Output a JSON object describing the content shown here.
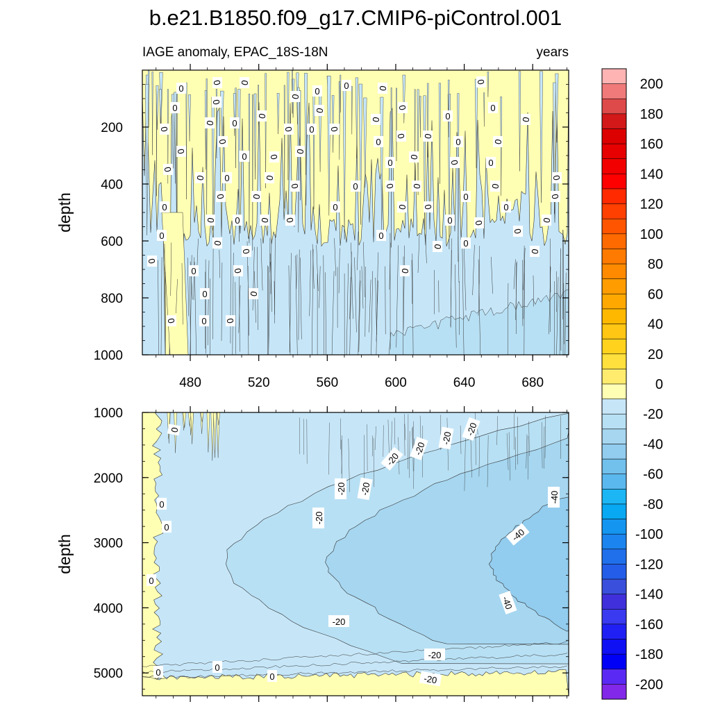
{
  "chart_data": {
    "type": "heatmap",
    "title": "b.e21.B1850.f09_g17.CMIP6-piControl.001",
    "variable_label": "IAGE anomaly, EPAC_18S-18N",
    "units_label": "years",
    "ylabel": "depth",
    "xlim": [
      452,
      701
    ],
    "x_ticks": [
      480,
      520,
      560,
      600,
      640,
      680
    ],
    "x_tick_labels": [
      "480",
      "520",
      "560",
      "600",
      "640",
      "680"
    ],
    "panels": [
      {
        "name": "upper",
        "ylim": [
          0,
          1000
        ],
        "y_ticks": [
          200,
          400,
          600,
          800,
          1000
        ],
        "y_tick_labels": [
          "200",
          "400",
          "600",
          "800",
          "1000"
        ],
        "contour_labels": [
          "0",
          "0",
          "0",
          "0",
          "0",
          "0",
          "0",
          "0",
          "0",
          "0",
          "0",
          "0",
          "0",
          "0",
          "0",
          "0",
          "0",
          "0",
          "0",
          "0",
          "0",
          "0",
          "0",
          "0",
          "0",
          "0",
          "0",
          "0",
          "0",
          "0"
        ],
        "regions": [
          {
            "description": "positive 0 to 10",
            "x": [
              452,
              701
            ],
            "depth": [
              0,
              560
            ]
          },
          {
            "description": "negative -10 to 0",
            "x": [
              452,
              701
            ],
            "depth": [
              560,
              1000
            ]
          }
        ]
      },
      {
        "name": "lower",
        "ylim": [
          1000,
          5350
        ],
        "y_ticks": [
          1000,
          2000,
          3000,
          4000,
          5000
        ],
        "y_tick_labels": [
          "1000",
          "2000",
          "3000",
          "4000",
          "5000"
        ],
        "contour_labels": [
          "0",
          "0",
          "0",
          "0",
          "0",
          "0",
          "0",
          "-20",
          "-20",
          "-20",
          "-20",
          "-20",
          "-20",
          "-20",
          "-20",
          "-20",
          "-40",
          "-40",
          "-40",
          "-20"
        ],
        "regions": [
          {
            "description": "positive 0 to 10",
            "x": [
              452,
              475
            ],
            "depth": [
              1000,
              5350
            ]
          },
          {
            "description": "positive 0 to 10",
            "x": [
              452,
              701
            ],
            "depth": [
              5050,
              5350
            ]
          },
          {
            "description": "-10 to 0",
            "x": [
              475,
              701
            ],
            "depth": [
              1000,
              5050
            ]
          },
          {
            "description": "-20 to -10",
            "x": [
              500,
              701
            ],
            "depth": [
              1000,
              4850
            ]
          },
          {
            "description": "-30 to -20",
            "x": [
              560,
              701
            ],
            "depth": [
              1800,
              4500
            ]
          },
          {
            "description": "-40 to -30",
            "x": [
              655,
              701
            ],
            "depth": [
              2500,
              4300
            ]
          }
        ]
      }
    ],
    "colorbar": {
      "levels": [
        -210,
        -200,
        -190,
        -180,
        -170,
        -160,
        -150,
        -140,
        -130,
        -120,
        -110,
        -100,
        -90,
        -80,
        -70,
        -60,
        -50,
        -40,
        -30,
        -20,
        -10,
        0,
        10,
        20,
        30,
        40,
        50,
        60,
        70,
        80,
        90,
        100,
        110,
        120,
        130,
        140,
        150,
        160,
        170,
        180,
        190,
        200,
        210
      ],
      "labels": [
        "200",
        "180",
        "160",
        "140",
        "120",
        "100",
        "80",
        "60",
        "40",
        "20",
        "0",
        "-20",
        "-40",
        "-60",
        "-80",
        "-100",
        "-120",
        "-140",
        "-160",
        "-180",
        "-200"
      ],
      "colors": [
        "#ffb4b4",
        "#f07a7a",
        "#de4a4a",
        "#d21818",
        "#dc0000",
        "#e60000",
        "#f20000",
        "#ff0000",
        "#ff2a00",
        "#ff4000",
        "#ff5500",
        "#ff6a00",
        "#ff7a00",
        "#ff8a00",
        "#ff9c00",
        "#ffa800",
        "#ffb800",
        "#ffc614",
        "#ffd21e",
        "#ffe03c",
        "#ffec6e",
        "#ffffb4",
        "#c6e6f8",
        "#b8e0f4",
        "#a6d6f0",
        "#92ccee",
        "#72c0ec",
        "#5ab8ee",
        "#1cb6f4",
        "#08a8f2",
        "#1496f0",
        "#1c84ee",
        "#2070ec",
        "#245ee8",
        "#3a50dc",
        "#4030dc",
        "#3a3af0",
        "#2020f4",
        "#1010f4",
        "#0000f6",
        "#5a2af4",
        "#8228e8"
      ]
    }
  }
}
